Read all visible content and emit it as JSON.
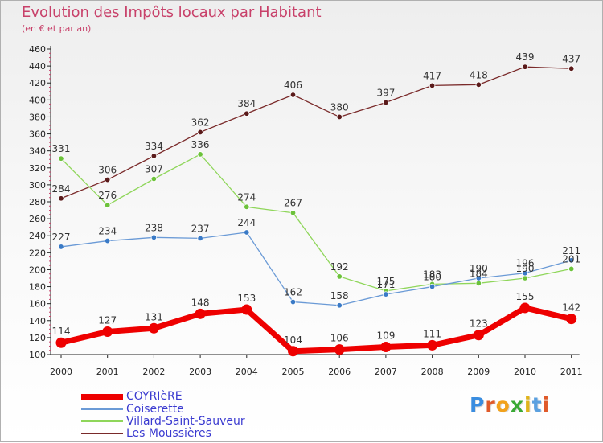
{
  "header": {
    "title": "Evolution des Impôts locaux par Habitant",
    "subtitle": "(en € et par an)"
  },
  "logo": {
    "text": "Proxiti",
    "colors": [
      "#3a8de0",
      "#e05a2a",
      "#f2a21c",
      "#3aaa35",
      "#e0b41c",
      "#5aa0e0",
      "#e05a2a"
    ]
  },
  "chart_data": {
    "type": "line",
    "title": "Evolution des Impôts locaux par Habitant",
    "subtitle": "(en € et par an)",
    "xlabel": "",
    "ylabel": "",
    "ylim": [
      100,
      460
    ],
    "ystep": 20,
    "grid": false,
    "legend_position": "bottom-left",
    "categories": [
      "2000",
      "2001",
      "2002",
      "2003",
      "2004",
      "2005",
      "2006",
      "2007",
      "2008",
      "2009",
      "2010",
      "2011"
    ],
    "series": [
      {
        "name": "Les Moussières",
        "color": "#7a2a2a",
        "marker": "#5a1a1a",
        "line_width": 1.3,
        "values": [
          284,
          306,
          334,
          362,
          384,
          406,
          380,
          397,
          417,
          418,
          439,
          437
        ],
        "labels": [
          "284",
          "306",
          "334",
          "362",
          "384",
          "406",
          "380",
          "397",
          "417",
          "418",
          "439",
          "437"
        ]
      },
      {
        "name": "Villard-Saint-Sauveur",
        "color": "#8fd65a",
        "marker": "#6cc23a",
        "line_width": 1.3,
        "values": [
          331,
          276,
          307,
          336,
          274,
          267,
          192,
          175,
          183,
          184,
          190,
          201
        ],
        "labels": [
          "331",
          "276",
          "307",
          "336",
          "274",
          "267",
          "192",
          "175",
          "183",
          "184",
          "190",
          "201"
        ]
      },
      {
        "name": "Coiserette",
        "color": "#6a9ad6",
        "marker": "#3a7ac6",
        "line_width": 1.3,
        "values": [
          227,
          234,
          238,
          237,
          244,
          162,
          158,
          171,
          180,
          190,
          196,
          211
        ],
        "labels": [
          "227",
          "234",
          "238",
          "237",
          "244",
          "162",
          "158",
          "171",
          "180",
          "190",
          "196",
          "211"
        ]
      },
      {
        "name": "COYRIèRE",
        "color": "#ee0000",
        "marker": "#ee0000",
        "line_width": 7,
        "values": [
          114,
          127,
          131,
          148,
          153,
          104,
          106,
          109,
          111,
          123,
          155,
          142
        ],
        "labels": [
          "114",
          "127",
          "131",
          "148",
          "153",
          "104",
          "106",
          "109",
          "111",
          "123",
          "155",
          "142"
        ]
      }
    ],
    "legend": [
      {
        "label": "COYRIèRE",
        "color": "#ee0000",
        "thickness": 7
      },
      {
        "label": "Coiserette",
        "color": "#6a9ad6",
        "thickness": 2
      },
      {
        "label": "Villard-Saint-Sauveur",
        "color": "#8fd65a",
        "thickness": 2
      },
      {
        "label": "Les Moussières",
        "color": "#7a2a2a",
        "thickness": 2
      }
    ]
  }
}
